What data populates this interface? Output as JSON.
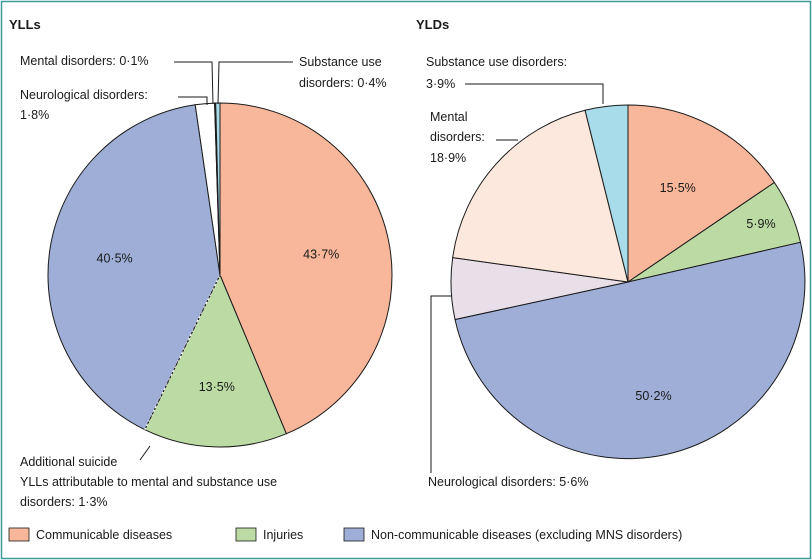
{
  "colors": {
    "frame": "#3a9a9a",
    "communicable": "#f8b79a",
    "injuries": "#bcdba4",
    "ncd": "#9eaed6",
    "neurological": "#ffffff",
    "mental": "#fde8dd",
    "substance": "#a9dcea",
    "neuro_yld": "#e9dfe9",
    "edge": "#1a1a1a"
  },
  "chart_data": [
    {
      "type": "pie",
      "title": "YLLs",
      "slices": [
        {
          "name": "Communicable diseases",
          "value": 43.7,
          "label": "43·7%",
          "color_key": "communicable"
        },
        {
          "name": "Injuries",
          "value": 13.5,
          "label": "13·5%",
          "color_key": "injuries"
        },
        {
          "name": "Non-communicable diseases (excluding MNS disorders)",
          "value": 40.5,
          "label": "40·5%",
          "color_key": "ncd"
        },
        {
          "name": "Neurological disorders",
          "value": 1.8,
          "label": "",
          "color_key": "neurological"
        },
        {
          "name": "Mental disorders",
          "value": 0.1,
          "label": "",
          "color_key": "mental"
        },
        {
          "name": "Substance use disorders",
          "value": 0.4,
          "label": "",
          "color_key": "substance"
        }
      ],
      "annotations": {
        "mental": "Mental disorders: 0·1%",
        "substance_1": "Substance use",
        "substance_2": "disorders: 0·4%",
        "neuro_1": "Neurological disorders:",
        "neuro_2": "1·8%",
        "suicide_1": "Additional suicide",
        "suicide_2": "YLLs attributable to mental and substance use",
        "suicide_3": "disorders: 1·3%"
      },
      "additional_suicide_share": 1.3
    },
    {
      "type": "pie",
      "title": "YLDs",
      "slices": [
        {
          "name": "Communicable diseases",
          "value": 15.5,
          "label": "15·5%",
          "color_key": "communicable"
        },
        {
          "name": "Injuries",
          "value": 5.9,
          "label": "5·9%",
          "color_key": "injuries"
        },
        {
          "name": "Non-communicable diseases (excluding MNS disorders)",
          "value": 50.2,
          "label": "50·2%",
          "color_key": "ncd"
        },
        {
          "name": "Neurological disorders",
          "value": 5.6,
          "label": "",
          "color_key": "neuro_yld"
        },
        {
          "name": "Mental disorders",
          "value": 18.9,
          "label": "",
          "color_key": "mental"
        },
        {
          "name": "Substance use disorders",
          "value": 3.9,
          "label": "",
          "color_key": "substance"
        }
      ],
      "annotations": {
        "substance_1": "Substance use disorders:",
        "substance_2": "3·9%",
        "mental_1": "Mental",
        "mental_2": "disorders:",
        "mental_3": "18·9%",
        "neuro": "Neurological disorders: 5·6%"
      }
    }
  ],
  "legend": [
    {
      "label": "Communicable diseases",
      "color_key": "communicable"
    },
    {
      "label": "Injuries",
      "color_key": "injuries"
    },
    {
      "label": "Non-communicable diseases (excluding MNS disorders)",
      "color_key": "ncd"
    }
  ]
}
